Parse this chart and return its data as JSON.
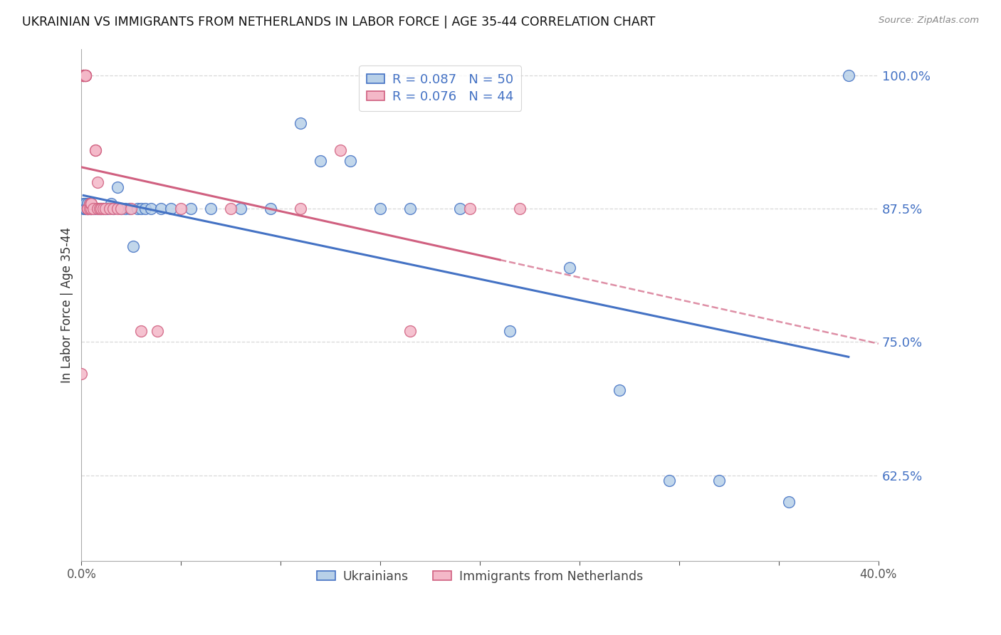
{
  "title": "UKRAINIAN VS IMMIGRANTS FROM NETHERLANDS IN LABOR FORCE | AGE 35-44 CORRELATION CHART",
  "source": "Source: ZipAtlas.com",
  "ylabel": "In Labor Force | Age 35-44",
  "xlim": [
    0.0,
    0.4
  ],
  "ylim": [
    0.545,
    1.025
  ],
  "yticks": [
    0.625,
    0.75,
    0.875,
    1.0
  ],
  "ytick_labels": [
    "62.5%",
    "75.0%",
    "87.5%",
    "100.0%"
  ],
  "xticks": [
    0.0,
    0.05,
    0.1,
    0.15,
    0.2,
    0.25,
    0.3,
    0.35,
    0.4
  ],
  "xtick_labels": [
    "0.0%",
    "",
    "",
    "",
    "",
    "",
    "",
    "",
    "40.0%"
  ],
  "blue_R": 0.087,
  "blue_N": 50,
  "pink_R": 0.076,
  "pink_N": 44,
  "blue_fill": "#b8d0e8",
  "pink_fill": "#f4b8c8",
  "blue_edge": "#4472c4",
  "pink_edge": "#d06080",
  "legend_blue_label": "Ukrainians",
  "legend_pink_label": "Immigrants from Netherlands",
  "blue_scatter_x": [
    0.001,
    0.001,
    0.002,
    0.002,
    0.002,
    0.003,
    0.003,
    0.003,
    0.004,
    0.004,
    0.005,
    0.005,
    0.006,
    0.007,
    0.008,
    0.009,
    0.01,
    0.011,
    0.012,
    0.013,
    0.015,
    0.016,
    0.018,
    0.02,
    0.022,
    0.024,
    0.026,
    0.028,
    0.03,
    0.032,
    0.035,
    0.04,
    0.045,
    0.055,
    0.065,
    0.08,
    0.095,
    0.11,
    0.12,
    0.135,
    0.15,
    0.165,
    0.19,
    0.215,
    0.245,
    0.27,
    0.295,
    0.32,
    0.355,
    0.385
  ],
  "blue_scatter_y": [
    0.875,
    0.88,
    0.875,
    0.88,
    0.875,
    0.875,
    0.875,
    0.88,
    0.875,
    0.88,
    0.875,
    0.875,
    0.875,
    0.875,
    0.875,
    0.875,
    0.875,
    0.875,
    0.875,
    0.875,
    0.88,
    0.875,
    0.895,
    0.875,
    0.875,
    0.875,
    0.84,
    0.875,
    0.875,
    0.875,
    0.875,
    0.875,
    0.875,
    0.875,
    0.875,
    0.875,
    0.875,
    0.955,
    0.92,
    0.92,
    0.875,
    0.875,
    0.875,
    0.76,
    0.82,
    0.705,
    0.62,
    0.62,
    0.6,
    1.0
  ],
  "pink_scatter_x": [
    0.001,
    0.001,
    0.001,
    0.001,
    0.001,
    0.001,
    0.002,
    0.002,
    0.002,
    0.002,
    0.002,
    0.002,
    0.003,
    0.003,
    0.003,
    0.004,
    0.004,
    0.005,
    0.005,
    0.005,
    0.006,
    0.007,
    0.007,
    0.008,
    0.008,
    0.009,
    0.01,
    0.011,
    0.012,
    0.014,
    0.016,
    0.018,
    0.02,
    0.025,
    0.03,
    0.038,
    0.05,
    0.075,
    0.11,
    0.13,
    0.165,
    0.195,
    0.22,
    0.0
  ],
  "pink_scatter_y": [
    1.0,
    1.0,
    1.0,
    1.0,
    1.0,
    1.0,
    1.0,
    1.0,
    1.0,
    1.0,
    1.0,
    1.0,
    0.875,
    0.875,
    0.875,
    0.88,
    0.875,
    0.875,
    0.88,
    0.88,
    0.875,
    0.93,
    0.93,
    0.875,
    0.9,
    0.875,
    0.875,
    0.875,
    0.875,
    0.875,
    0.875,
    0.875,
    0.875,
    0.875,
    0.76,
    0.76,
    0.875,
    0.875,
    0.875,
    0.93,
    0.76,
    0.875,
    0.875,
    0.72
  ],
  "background_color": "#ffffff",
  "grid_color": "#d8d8d8"
}
